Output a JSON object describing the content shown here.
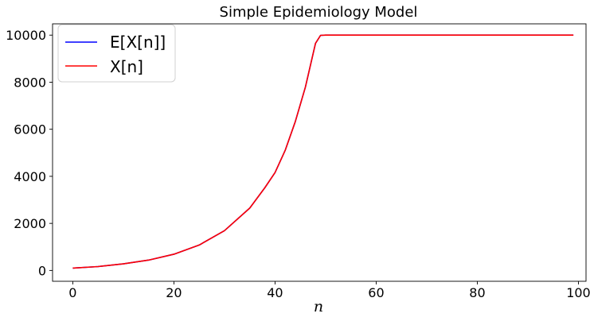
{
  "chart_data": {
    "type": "line",
    "title": "Simple Epidemiology Model",
    "xlabel": "n",
    "ylabel": "",
    "xlim": [
      -4,
      101.5
    ],
    "ylim": [
      -460,
      10480
    ],
    "x_ticks": [
      0,
      20,
      40,
      60,
      80,
      100
    ],
    "y_ticks": [
      0,
      2000,
      4000,
      6000,
      8000,
      10000
    ],
    "legend": {
      "location": "upper-left"
    },
    "grid": false,
    "series": [
      {
        "name": "E[X[n]]",
        "color": "#0000ff",
        "x": [
          0,
          5,
          10,
          15,
          20,
          25,
          30,
          35,
          38,
          40,
          42,
          44,
          46,
          48,
          49,
          50,
          60,
          70,
          80,
          90,
          99
        ],
        "y": [
          100,
          165,
          280,
          440,
          690,
          1080,
          1690,
          2650,
          3520,
          4160,
          5100,
          6320,
          7790,
          9650,
          9990,
          10000,
          10000,
          10000,
          10000,
          10000,
          10000
        ]
      },
      {
        "name": "X[n]",
        "color": "#ff0000",
        "x": [
          0,
          5,
          10,
          15,
          20,
          25,
          30,
          35,
          38,
          40,
          42,
          44,
          46,
          48,
          49,
          50,
          60,
          70,
          80,
          90,
          99
        ],
        "y": [
          100,
          165,
          280,
          440,
          690,
          1080,
          1690,
          2650,
          3520,
          4160,
          5100,
          6320,
          7790,
          9650,
          9990,
          10000,
          10000,
          10000,
          10000,
          10000,
          10000
        ]
      }
    ]
  }
}
